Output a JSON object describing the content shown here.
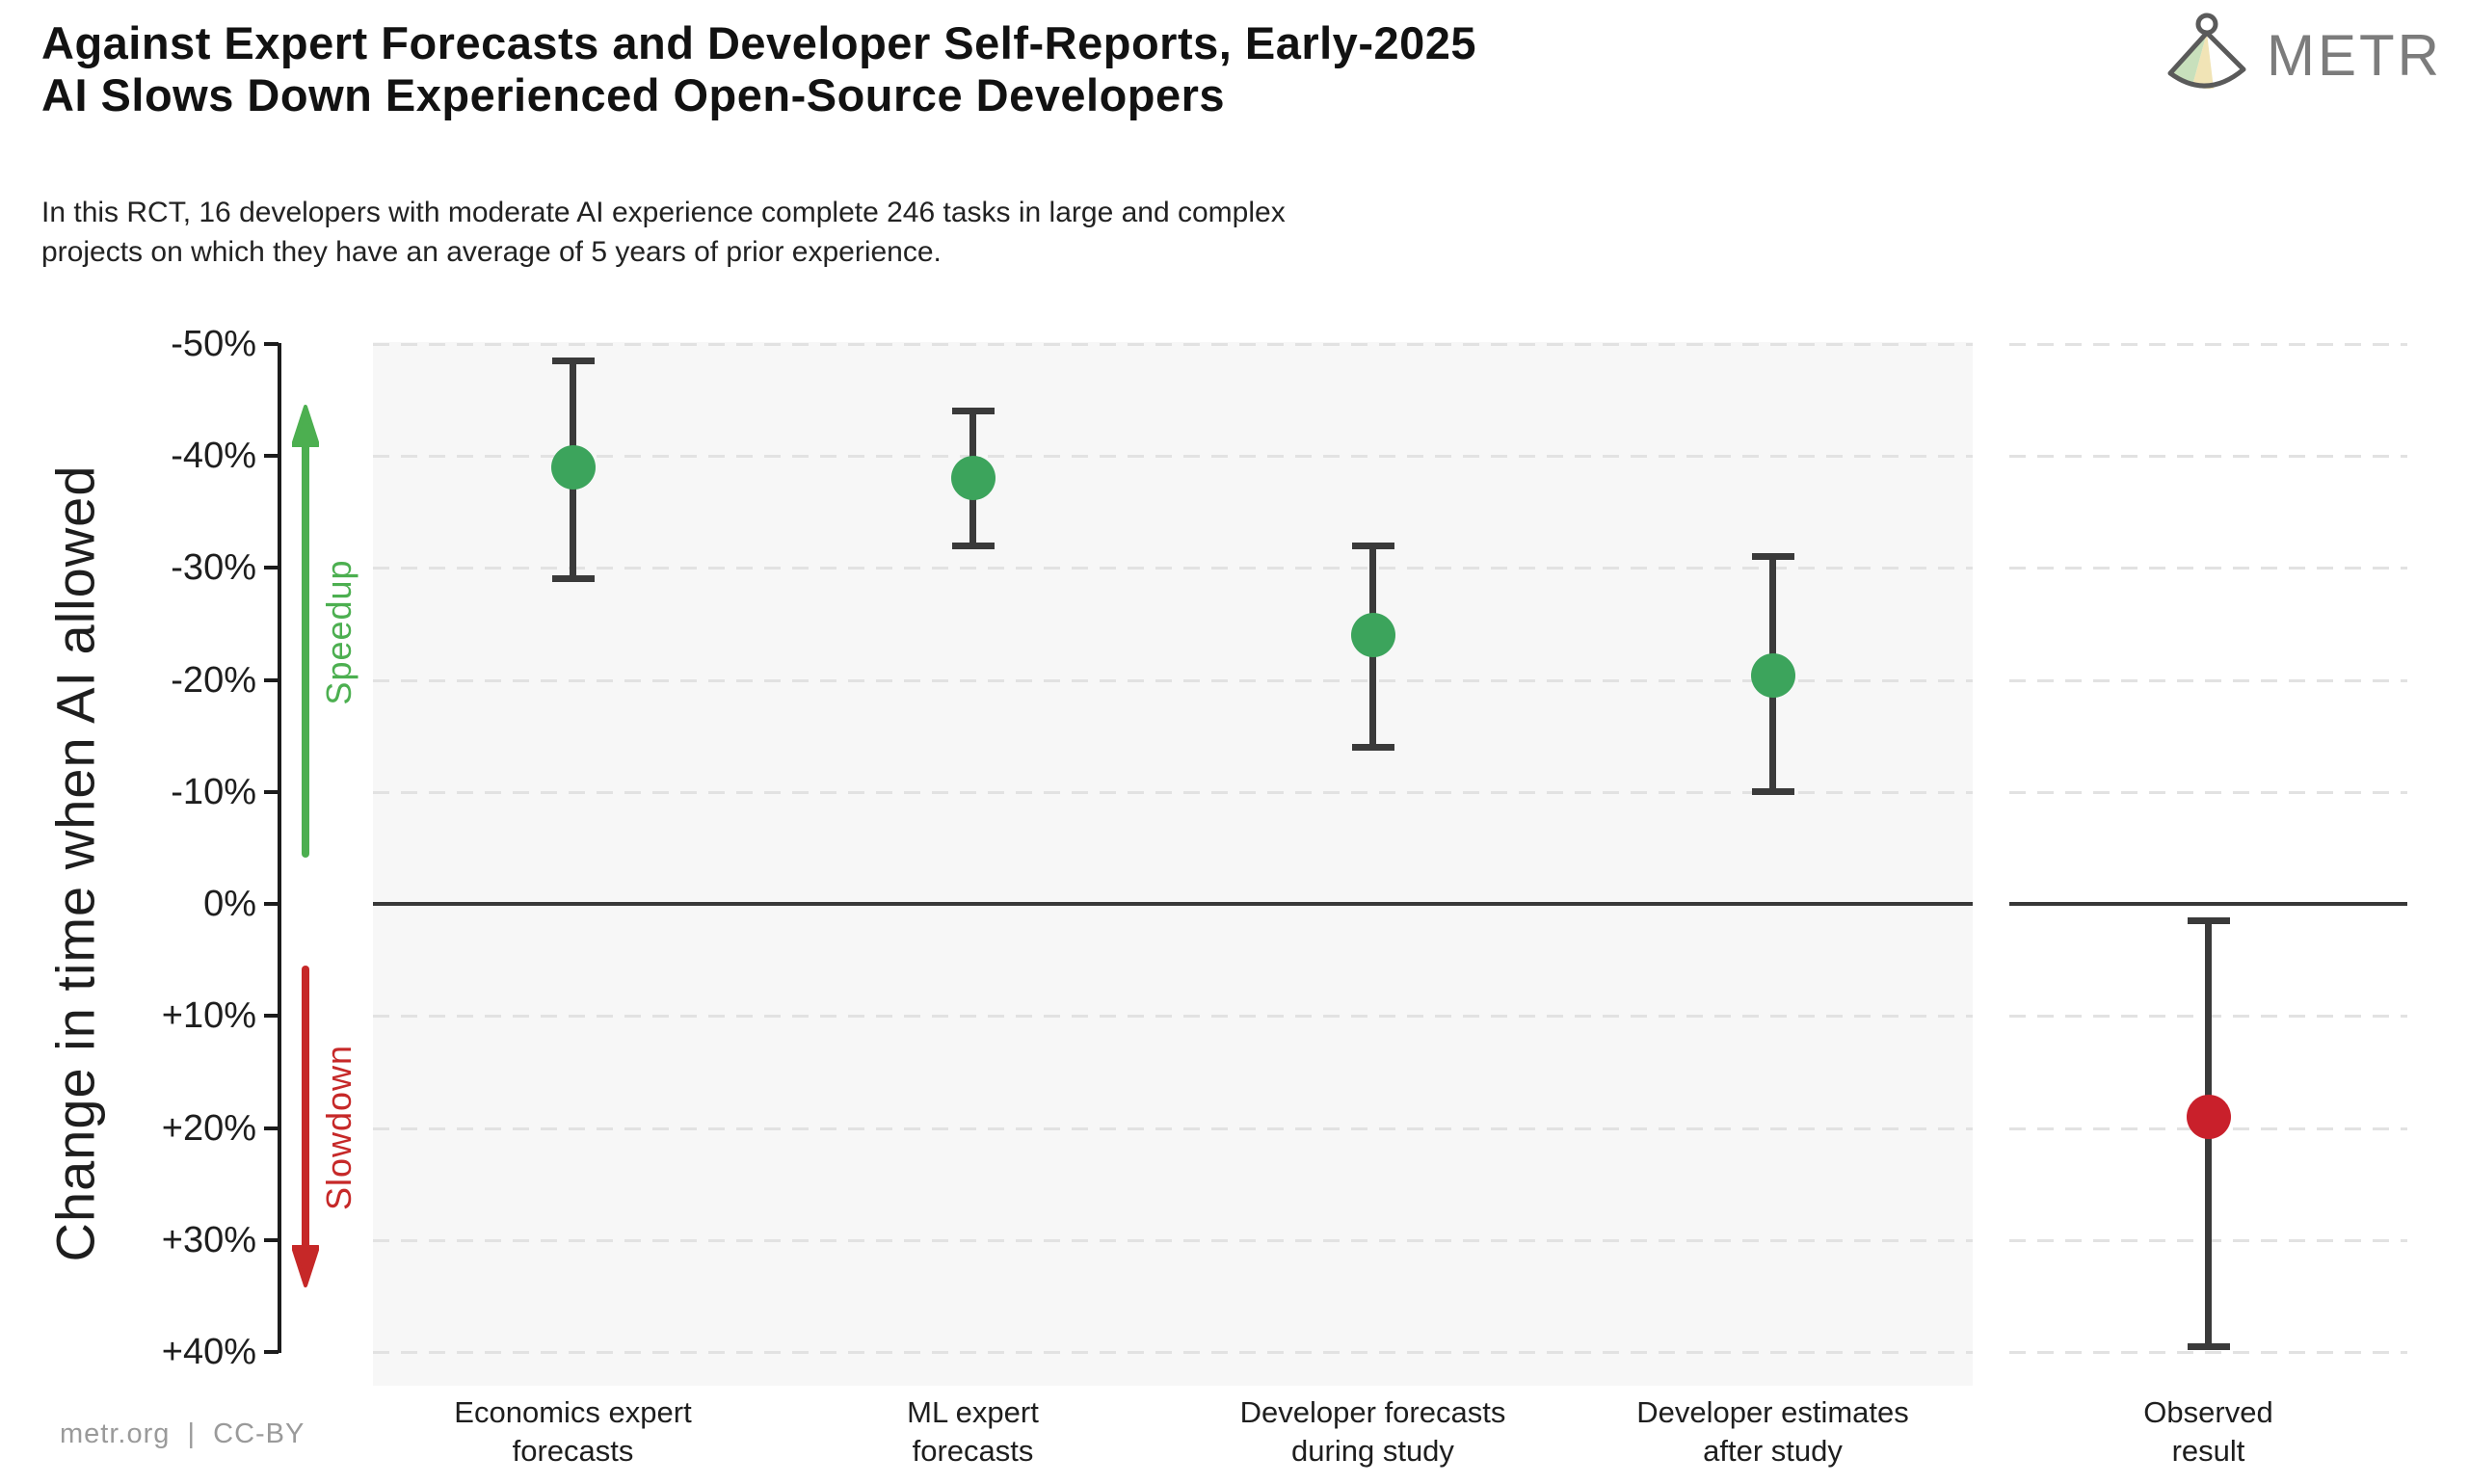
{
  "header": {
    "title_line1": "Against Expert Forecasts and Developer Self-Reports, Early-2025",
    "title_line2": "AI Slows Down Experienced Open-Source Developers",
    "subtitle_line1": "In this RCT, 16 developers with moderate AI experience complete 246 tasks in large and complex",
    "subtitle_line2": "projects on which they have an average of 5 years of prior experience.",
    "brand": "METR"
  },
  "chart_data": {
    "type": "scatter",
    "title": "Against Expert Forecasts and Developer Self-Reports, Early-2025 AI Slows Down Experienced Open-Source Developers",
    "ylabel": "Change in time when AI allowed",
    "ylim": [
      -50,
      40
    ],
    "y_axis_inverted": true,
    "grid": true,
    "yticks": [
      {
        "label": "-50%",
        "value": -50
      },
      {
        "label": "-40%",
        "value": -40
      },
      {
        "label": "-30%",
        "value": -30
      },
      {
        "label": "-20%",
        "value": -20
      },
      {
        "label": "-10%",
        "value": -10
      },
      {
        "label": "0%",
        "value": 0
      },
      {
        "label": "+10%",
        "value": 10
      },
      {
        "label": "+20%",
        "value": 20
      },
      {
        "label": "+30%",
        "value": 30
      },
      {
        "label": "+40%",
        "value": 40
      }
    ],
    "zero_line_value": 0,
    "series": [
      {
        "label_line1": "Economics expert",
        "label_line2": "forecasts",
        "value": -39,
        "ci_low": -48.5,
        "ci_high": -29,
        "color": "#3ca45c",
        "panel": "main"
      },
      {
        "label_line1": "ML expert",
        "label_line2": "forecasts",
        "value": -38,
        "ci_low": -44,
        "ci_high": -32,
        "color": "#3ca45c",
        "panel": "main"
      },
      {
        "label_line1": "Developer forecasts",
        "label_line2": "during study",
        "value": -24,
        "ci_low": -32,
        "ci_high": -14,
        "color": "#3ca45c",
        "panel": "main"
      },
      {
        "label_line1": "Developer estimates",
        "label_line2": "after study",
        "value": -20.4,
        "ci_low": -31,
        "ci_high": -10,
        "color": "#3ca45c",
        "panel": "main"
      },
      {
        "label_line1": "Observed",
        "label_line2": "result",
        "value": 19,
        "ci_low": 1.5,
        "ci_high": 39.5,
        "color": "#c9202b",
        "panel": "observed"
      }
    ],
    "annotations": {
      "speedup_label": "Speedup",
      "slowdown_label": "Slowdown",
      "speedup_color": "#4caf50",
      "slowdown_color": "#c62828"
    },
    "colors": {
      "error_bar": "#3a3a3a",
      "gridline": "#e2e2e2",
      "main_panel_bg": "#f7f7f7",
      "observed_panel_bg": "#ffffff",
      "logo_green": "#c8e0bc",
      "logo_yellow": "#f1e4b6",
      "logo_pink": "#f5c7c4"
    }
  },
  "footer": {
    "credit": "metr.org  |  CC-BY"
  }
}
